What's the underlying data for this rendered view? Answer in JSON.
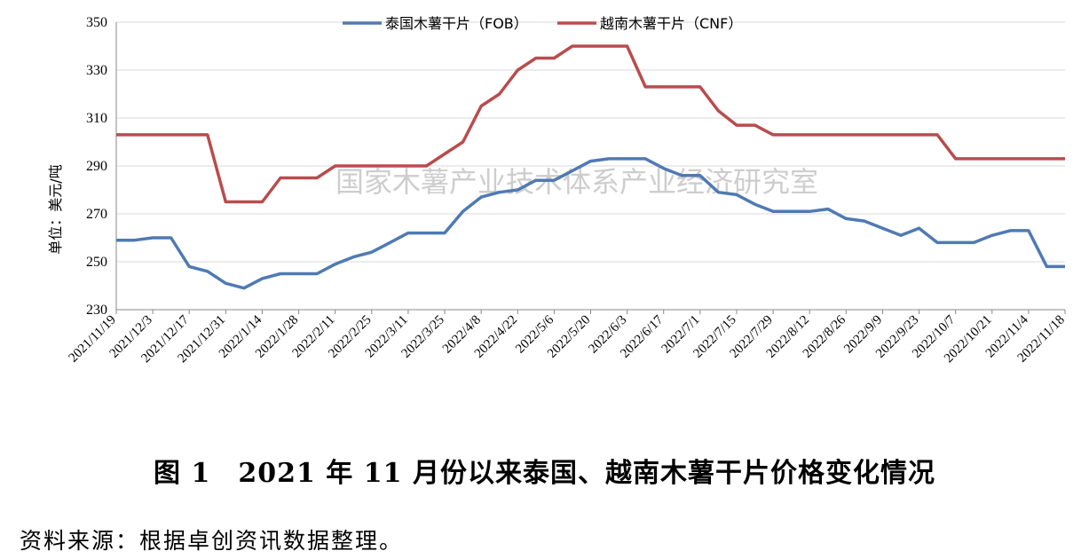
{
  "chart_data": {
    "type": "line",
    "title": "图 1　2021 年 11 月份以来泰国、越南木薯干片价格变化情况",
    "ylabel": "单位：美元/吨",
    "xlabel": "",
    "ylim": [
      230,
      350
    ],
    "yticks": [
      "350",
      "330",
      "310",
      "290",
      "270",
      "250",
      "230"
    ],
    "x_tick_labels": [
      "2021/11/19",
      "2021/12/3",
      "2021/12/17",
      "2021/12/31",
      "2022/1/14",
      "2022/1/28",
      "2022/2/11",
      "2022/2/25",
      "2022/3/11",
      "2022/3/25",
      "2022/4/8",
      "2022/4/22",
      "2022/5/6",
      "2022/5/20",
      "2022/6/3",
      "2022/6/17",
      "2022/7/1",
      "2022/7/15",
      "2022/7/29",
      "2022/8/12",
      "2022/8/26",
      "2022/9/9",
      "2022/9/23",
      "2022/10/7",
      "2022/10/21",
      "2022/11/4",
      "2022/11/18"
    ],
    "x": [
      "2021/11/19",
      "2021/11/26",
      "2021/12/3",
      "2021/12/10",
      "2021/12/17",
      "2021/12/24",
      "2021/12/31",
      "2022/1/7",
      "2022/1/14",
      "2022/1/21",
      "2022/1/28",
      "2022/2/4",
      "2022/2/11",
      "2022/2/18",
      "2022/2/25",
      "2022/3/4",
      "2022/3/11",
      "2022/3/18",
      "2022/3/25",
      "2022/4/1",
      "2022/4/8",
      "2022/4/15",
      "2022/4/22",
      "2022/4/29",
      "2022/5/6",
      "2022/5/13",
      "2022/5/20",
      "2022/5/27",
      "2022/6/3",
      "2022/6/10",
      "2022/6/17",
      "2022/6/24",
      "2022/7/1",
      "2022/7/8",
      "2022/7/15",
      "2022/7/22",
      "2022/7/29",
      "2022/8/5",
      "2022/8/12",
      "2022/8/19",
      "2022/8/26",
      "2022/9/2",
      "2022/9/9",
      "2022/9/16",
      "2022/9/23",
      "2022/9/30",
      "2022/10/7",
      "2022/10/14",
      "2022/10/21",
      "2022/10/28",
      "2022/11/4",
      "2022/11/11",
      "2022/11/18"
    ],
    "series": [
      {
        "name": "泰国木薯干片（FOB）",
        "color": "#4f7ab3",
        "values": [
          259,
          259,
          260,
          260,
          248,
          246,
          241,
          239,
          243,
          245,
          245,
          245,
          249,
          252,
          254,
          258,
          262,
          262,
          262,
          271,
          277,
          279,
          280,
          284,
          284,
          288,
          292,
          293,
          293,
          293,
          289,
          286,
          286,
          279,
          278,
          274,
          271,
          271,
          271,
          272,
          268,
          267,
          264,
          261,
          264,
          258,
          258,
          258,
          261,
          263,
          263,
          248,
          248
        ]
      },
      {
        "name": "越南木薯干片（CNF）",
        "color": "#b94c4e",
        "values": [
          303,
          303,
          303,
          303,
          303,
          303,
          275,
          275,
          275,
          285,
          285,
          285,
          290,
          290,
          290,
          290,
          290,
          290,
          295,
          300,
          315,
          320,
          330,
          335,
          335,
          340,
          340,
          340,
          340,
          323,
          323,
          323,
          323,
          313,
          307,
          307,
          303,
          303,
          303,
          303,
          303,
          303,
          303,
          303,
          303,
          303,
          293,
          293,
          293,
          293,
          293,
          293,
          293
        ]
      }
    ],
    "legend_position": "top-center",
    "grid": "horizontal"
  },
  "watermark": "国家木薯产业技术体系产业经济研究室",
  "caption": "图 1　2021 年 11 月份以来泰国、越南木薯干片价格变化情况",
  "source": "资料来源：根据卓创资讯数据整理。"
}
